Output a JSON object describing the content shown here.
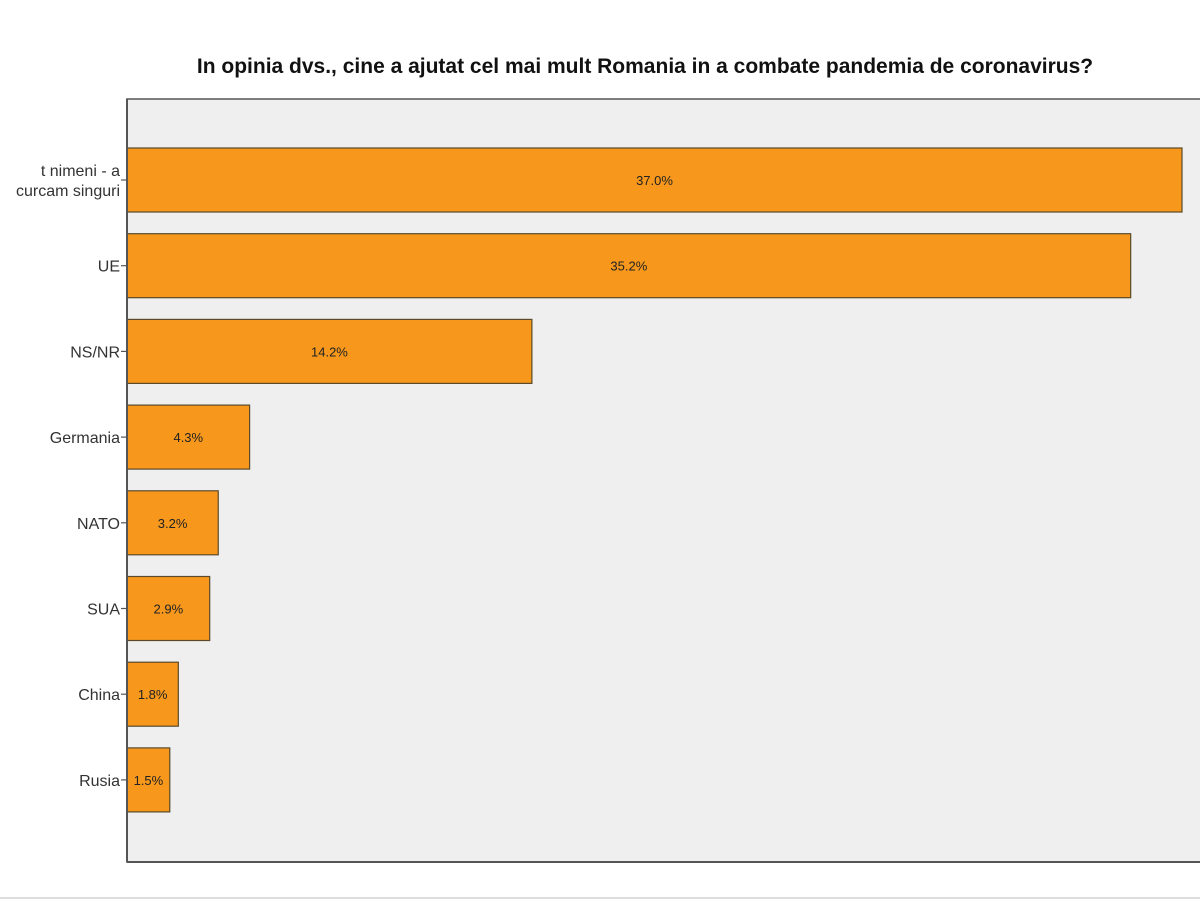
{
  "chart_data": {
    "type": "bar",
    "orientation": "horizontal",
    "title": "In opinia dvs., cine a ajutat cel mai mult Romania in a combate pandemia de coronavirus?",
    "categories": [
      [
        "t nimeni - a",
        "curcam singuri"
      ],
      [
        "UE"
      ],
      [
        "NS/NR"
      ],
      [
        "Germania"
      ],
      [
        "NATO"
      ],
      [
        "SUA"
      ],
      [
        "China"
      ],
      [
        "Rusia"
      ]
    ],
    "values": [
      37.0,
      35.2,
      14.2,
      4.3,
      3.2,
      2.9,
      1.8,
      1.5
    ],
    "data_labels": [
      "37.0%",
      "35.2%",
      "14.2%",
      "4.3%",
      "3.2%",
      "2.9%",
      "1.8%",
      "1.5%"
    ],
    "unit": "%",
    "xlim": [
      0,
      37.0
    ],
    "grid": false,
    "colors": {
      "bar": "#f7981d",
      "bar_border": "#5a4a2a",
      "plot_bg": "#efefef",
      "axis": "#555555"
    }
  }
}
